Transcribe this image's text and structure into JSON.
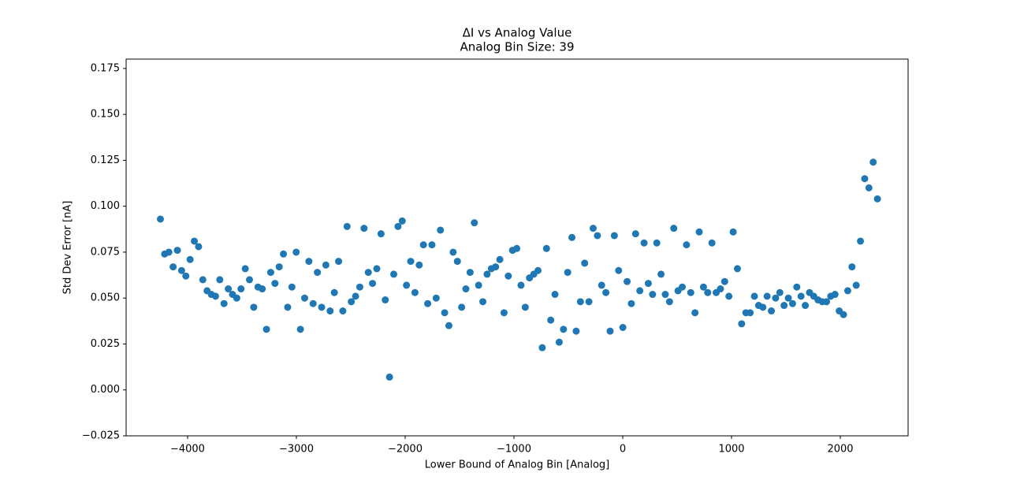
{
  "chart_data": {
    "type": "scatter",
    "title": "ΔI vs Analog Value",
    "subtitle": "Analog Bin Size: 39",
    "x_label": "Lower Bound of Analog Bin [Analog]",
    "y_label": "Std Dev Error [nA]",
    "color": "#1f77b4",
    "xlim": [
      -4565,
      2623
    ],
    "ylim": [
      -0.025,
      0.1801
    ],
    "xticks": [
      {
        "value": -4000,
        "label": "−4000"
      },
      {
        "value": -3000,
        "label": "−3000"
      },
      {
        "value": -2000,
        "label": "−2000"
      },
      {
        "value": -1000,
        "label": "−1000"
      },
      0,
      1000,
      2000
    ],
    "yticks": [
      {
        "value": -0.025,
        "label": "−0.025"
      },
      {
        "value": 0,
        "label": "0.000"
      },
      0.025,
      {
        "value": 0.05,
        "label": "0.050"
      },
      0.075,
      {
        "value": 0.1,
        "label": "0.100"
      },
      0.125,
      {
        "value": 0.15,
        "label": "0.150"
      },
      0.175
    ],
    "x": [
      -4250,
      -4211,
      -4172,
      -4133,
      -4094,
      -4055,
      -4016,
      -3977,
      -3938,
      -3899,
      -3860,
      -3821,
      -3782,
      -3743,
      -3704,
      -3665,
      -3626,
      -3587,
      -3548,
      -3509,
      -3470,
      -3431,
      -3392,
      -3353,
      -3314,
      -3275,
      -3236,
      -3197,
      -3158,
      -3119,
      -3080,
      -3041,
      -3002,
      -2963,
      -2924,
      -2885,
      -2846,
      -2807,
      -2768,
      -2729,
      -2690,
      -2651,
      -2612,
      -2573,
      -2534,
      -2495,
      -2456,
      -2417,
      -2378,
      -2339,
      -2300,
      -2261,
      -2222,
      -2183,
      -2144,
      -2105,
      -2066,
      -2027,
      -1988,
      -1949,
      -1910,
      -1871,
      -1832,
      -1793,
      -1754,
      -1715,
      -1676,
      -1637,
      -1598,
      -1559,
      -1520,
      -1481,
      -1442,
      -1403,
      -1364,
      -1325,
      -1286,
      -1247,
      -1208,
      -1169,
      -1130,
      -1091,
      -1052,
      -1013,
      -974,
      -935,
      -896,
      -857,
      -818,
      -779,
      -740,
      -701,
      -662,
      -623,
      -584,
      -545,
      -506,
      -467,
      -428,
      -389,
      -350,
      -311,
      -272,
      -233,
      -194,
      -155,
      -116,
      -77,
      -38,
      1,
      40,
      79,
      118,
      157,
      196,
      235,
      274,
      313,
      352,
      391,
      430,
      469,
      508,
      547,
      586,
      625,
      664,
      703,
      742,
      781,
      820,
      859,
      898,
      937,
      976,
      1015,
      1054,
      1093,
      1132,
      1171,
      1210,
      1249,
      1288,
      1327,
      1366,
      1405,
      1444,
      1483,
      1522,
      1561,
      1600,
      1639,
      1678,
      1717,
      1756,
      1795,
      1834,
      1873,
      1912,
      1951,
      1990,
      2029,
      2068,
      2107,
      2146,
      2185,
      2224,
      2263,
      2302,
      2341
    ],
    "values": [
      0.093,
      0.074,
      0.075,
      0.067,
      0.076,
      0.065,
      0.062,
      0.071,
      0.081,
      0.078,
      0.06,
      0.054,
      0.052,
      0.051,
      0.06,
      0.047,
      0.055,
      0.052,
      0.05,
      0.055,
      0.066,
      0.06,
      0.045,
      0.056,
      0.055,
      0.033,
      0.064,
      0.058,
      0.067,
      0.074,
      0.045,
      0.056,
      0.075,
      0.033,
      0.05,
      0.07,
      0.047,
      0.064,
      0.045,
      0.068,
      0.043,
      0.053,
      0.07,
      0.043,
      0.089,
      0.048,
      0.051,
      0.056,
      0.088,
      0.064,
      0.058,
      0.066,
      0.085,
      0.049,
      0.007,
      0.063,
      0.089,
      0.092,
      0.057,
      0.07,
      0.053,
      0.068,
      0.079,
      0.047,
      0.079,
      0.05,
      0.087,
      0.042,
      0.035,
      0.075,
      0.07,
      0.045,
      0.055,
      0.064,
      0.091,
      0.057,
      0.048,
      0.063,
      0.066,
      0.067,
      0.071,
      0.042,
      0.062,
      0.076,
      0.077,
      0.057,
      0.045,
      0.061,
      0.063,
      0.065,
      0.023,
      0.077,
      0.038,
      0.052,
      0.026,
      0.033,
      0.064,
      0.083,
      0.032,
      0.048,
      0.069,
      0.048,
      0.088,
      0.084,
      0.057,
      0.053,
      0.032,
      0.084,
      0.065,
      0.034,
      0.059,
      0.047,
      0.085,
      0.054,
      0.08,
      0.058,
      0.052,
      0.08,
      0.063,
      0.052,
      0.048,
      0.088,
      0.054,
      0.056,
      0.079,
      0.053,
      0.042,
      0.086,
      0.056,
      0.053,
      0.08,
      0.053,
      0.055,
      0.059,
      0.051,
      0.086,
      0.066,
      0.036,
      0.042,
      0.042,
      0.051,
      0.046,
      0.045,
      0.051,
      0.043,
      0.05,
      0.053,
      0.046,
      0.05,
      0.047,
      0.056,
      0.051,
      0.046,
      0.053,
      0.051,
      0.049,
      0.048,
      0.048,
      0.051,
      0.052,
      0.043,
      0.041,
      0.054,
      0.067,
      0.057,
      0.081,
      0.115,
      0.11,
      0.124,
      0.104
    ]
  }
}
